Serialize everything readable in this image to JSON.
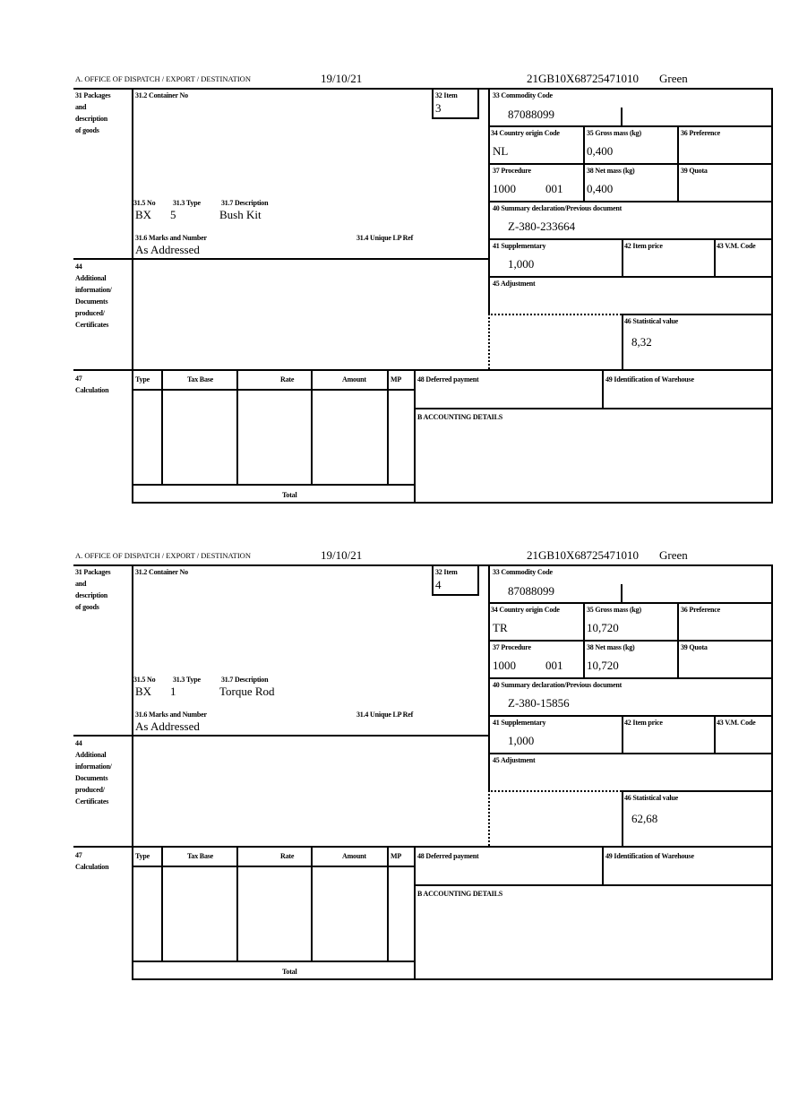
{
  "labels": {
    "office": "A.  OFFICE OF DISPATCH / EXPORT / DESTINATION",
    "packages": [
      "31 Packages",
      "and",
      "description",
      "of goods"
    ],
    "container_no": "31.2 Container No",
    "item": "32 Item",
    "commodity_code": "33 Commodity Code",
    "country_origin": "34 Country origin Code",
    "gross_mass": "35 Gross mass (kg)",
    "preference": "36 Preference",
    "procedure": "37 Procedure",
    "net_mass": "38 Net mass (kg)",
    "quota": "39 Quota",
    "summary_declaration": "40 Summary declaration/Previous document",
    "supplementary": "41 Supplementary",
    "item_price": "42 Item price",
    "vm_code": "43 V.M. Code",
    "adjustment": "45 Adjustment",
    "statistical_value": "46 Statistical value",
    "no": "31.5 No",
    "type": "31.3 Type",
    "description": "31.7 Description",
    "marks": "31.6 Marks and Number",
    "unique_lp_ref": "31.4 Unique LP Ref",
    "additional_info": [
      "44",
      "Additional",
      "information/",
      "Documents",
      "produced/",
      "Certificates"
    ],
    "calculation": [
      "47",
      "Calculation"
    ],
    "calc_columns": [
      "Type",
      "Tax Base",
      "Rate",
      "Amount",
      "MP"
    ],
    "deferred_payment": "48 Deferred payment",
    "warehouse": "49 Identification of Warehouse",
    "accounting": "B ACCOUNTING DETAILS",
    "total": "Total"
  },
  "forms": [
    {
      "date": "19/10/21",
      "reference": "21GB10X68725471010",
      "route": "Green",
      "item": "3",
      "commodity_code": "87088099",
      "country_origin": "NL",
      "gross_mass": "0,400",
      "procedure": "1000",
      "procedure_sub": "001",
      "net_mass": "0,400",
      "summary_declaration": "Z-380-233664",
      "supplementary": "1,000",
      "statistical_value": "8,32",
      "no": "BX",
      "type": "5",
      "description": "Bush Kit",
      "marks": "As Addressed"
    },
    {
      "date": "19/10/21",
      "reference": "21GB10X68725471010",
      "route": "Green",
      "item": "4",
      "commodity_code": "87088099",
      "country_origin": "TR",
      "gross_mass": "10,720",
      "procedure": "1000",
      "procedure_sub": "001",
      "net_mass": "10,720",
      "summary_declaration": "Z-380-15856",
      "supplementary": "1,000",
      "statistical_value": "62,68",
      "no": "BX",
      "type": "1",
      "description": "Torque Rod",
      "marks": "As Addressed"
    }
  ]
}
